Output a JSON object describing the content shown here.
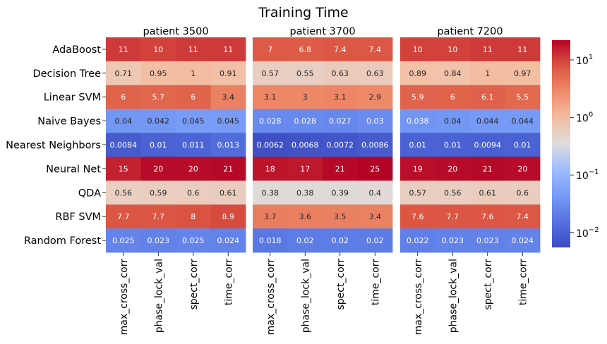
{
  "chart_data": {
    "type": "heatmap",
    "title": "Training Time",
    "color_scale": "log",
    "colormap": "coolwarm",
    "clim": [
      0.0055,
      22
    ],
    "rows": [
      "AdaBoost",
      "Decision Tree",
      "Linear SVM",
      "Naive Bayes",
      "Nearest Neighbors",
      "Neural Net",
      "QDA",
      "RBF SVM",
      "Random Forest"
    ],
    "columns": [
      "max_cross_corr",
      "phase_lock_val",
      "spect_corr",
      "time_corr"
    ],
    "panels": [
      {
        "title": "patient 3500",
        "values": [
          [
            11,
            10,
            11,
            11
          ],
          [
            0.71,
            0.95,
            1,
            0.91
          ],
          [
            6,
            5.7,
            6,
            3.4
          ],
          [
            0.04,
            0.042,
            0.045,
            0.045
          ],
          [
            0.0084,
            0.01,
            0.011,
            0.013
          ],
          [
            15,
            20,
            20,
            21
          ],
          [
            0.56,
            0.59,
            0.6,
            0.61
          ],
          [
            7.7,
            7.7,
            8,
            8.9
          ],
          [
            0.025,
            0.023,
            0.025,
            0.024
          ]
        ]
      },
      {
        "title": "patient 3700",
        "values": [
          [
            7,
            6.8,
            7.4,
            7.4
          ],
          [
            0.57,
            0.55,
            0.63,
            0.63
          ],
          [
            3.1,
            3,
            3.1,
            2.9
          ],
          [
            0.028,
            0.028,
            0.027,
            0.03
          ],
          [
            0.0062,
            0.0068,
            0.0072,
            0.0086
          ],
          [
            18,
            17,
            21,
            25
          ],
          [
            0.38,
            0.38,
            0.39,
            0.4
          ],
          [
            3.7,
            3.6,
            3.5,
            3.4
          ],
          [
            0.018,
            0.02,
            0.02,
            0.02
          ]
        ]
      },
      {
        "title": "patient 7200",
        "values": [
          [
            10,
            10,
            11,
            11
          ],
          [
            0.89,
            0.84,
            1,
            0.97
          ],
          [
            5.9,
            6,
            6.1,
            5.5
          ],
          [
            0.038,
            0.04,
            0.044,
            0.044
          ],
          [
            0.01,
            0.01,
            0.0094,
            0.01
          ],
          [
            19,
            20,
            21,
            20
          ],
          [
            0.57,
            0.56,
            0.61,
            0.6
          ],
          [
            7.6,
            7.7,
            7.6,
            7.4
          ],
          [
            0.022,
            0.023,
            0.023,
            0.024
          ]
        ]
      }
    ],
    "colorbar": {
      "ticks": [
        {
          "base": "10",
          "exp": "1",
          "value": 10
        },
        {
          "base": "10",
          "exp": "0",
          "value": 1
        },
        {
          "base": "10",
          "exp": "−1",
          "value": 0.1
        },
        {
          "base": "10",
          "exp": "−2",
          "value": 0.01
        }
      ]
    }
  }
}
